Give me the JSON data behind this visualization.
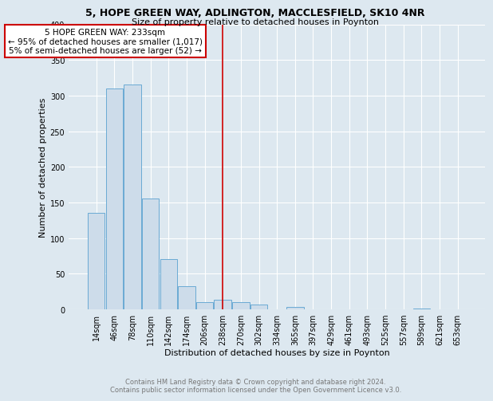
{
  "title1": "5, HOPE GREEN WAY, ADLINGTON, MACCLESFIELD, SK10 4NR",
  "title2": "Size of property relative to detached houses in Poynton",
  "xlabel": "Distribution of detached houses by size in Poynton",
  "ylabel": "Number of detached properties",
  "footer1": "Contains HM Land Registry data © Crown copyright and database right 2024.",
  "footer2": "Contains public sector information licensed under the Open Government Licence v3.0.",
  "bar_labels": [
    "14sqm",
    "46sqm",
    "78sqm",
    "110sqm",
    "142sqm",
    "174sqm",
    "206sqm",
    "238sqm",
    "270sqm",
    "302sqm",
    "334sqm",
    "365sqm",
    "397sqm",
    "429sqm",
    "461sqm",
    "493sqm",
    "525sqm",
    "557sqm",
    "589sqm",
    "621sqm",
    "653sqm"
  ],
  "bar_values": [
    135,
    310,
    315,
    155,
    70,
    33,
    10,
    13,
    10,
    7,
    0,
    3,
    0,
    0,
    0,
    0,
    0,
    0,
    1,
    0,
    0
  ],
  "bar_color": "#cddcea",
  "bar_edgecolor": "#6aaad4",
  "vline_x_index": 7,
  "vline_color": "#cc0000",
  "annotation_line1": "5 HOPE GREEN WAY: 233sqm",
  "annotation_line2": "← 95% of detached houses are smaller (1,017)",
  "annotation_line3": "5% of semi-detached houses are larger (52) →",
  "annotation_box_edgecolor": "#cc0000",
  "annotation_box_facecolor": "#ffffff",
  "ylim": [
    0,
    400
  ],
  "yticks": [
    0,
    50,
    100,
    150,
    200,
    250,
    300,
    350,
    400
  ],
  "bg_color": "#dde8f0",
  "grid_color": "#ffffff",
  "title1_fontsize": 9,
  "title2_fontsize": 8,
  "xlabel_fontsize": 8,
  "ylabel_fontsize": 8,
  "tick_fontsize": 7,
  "footer_fontsize": 6,
  "annotation_fontsize": 7.5
}
